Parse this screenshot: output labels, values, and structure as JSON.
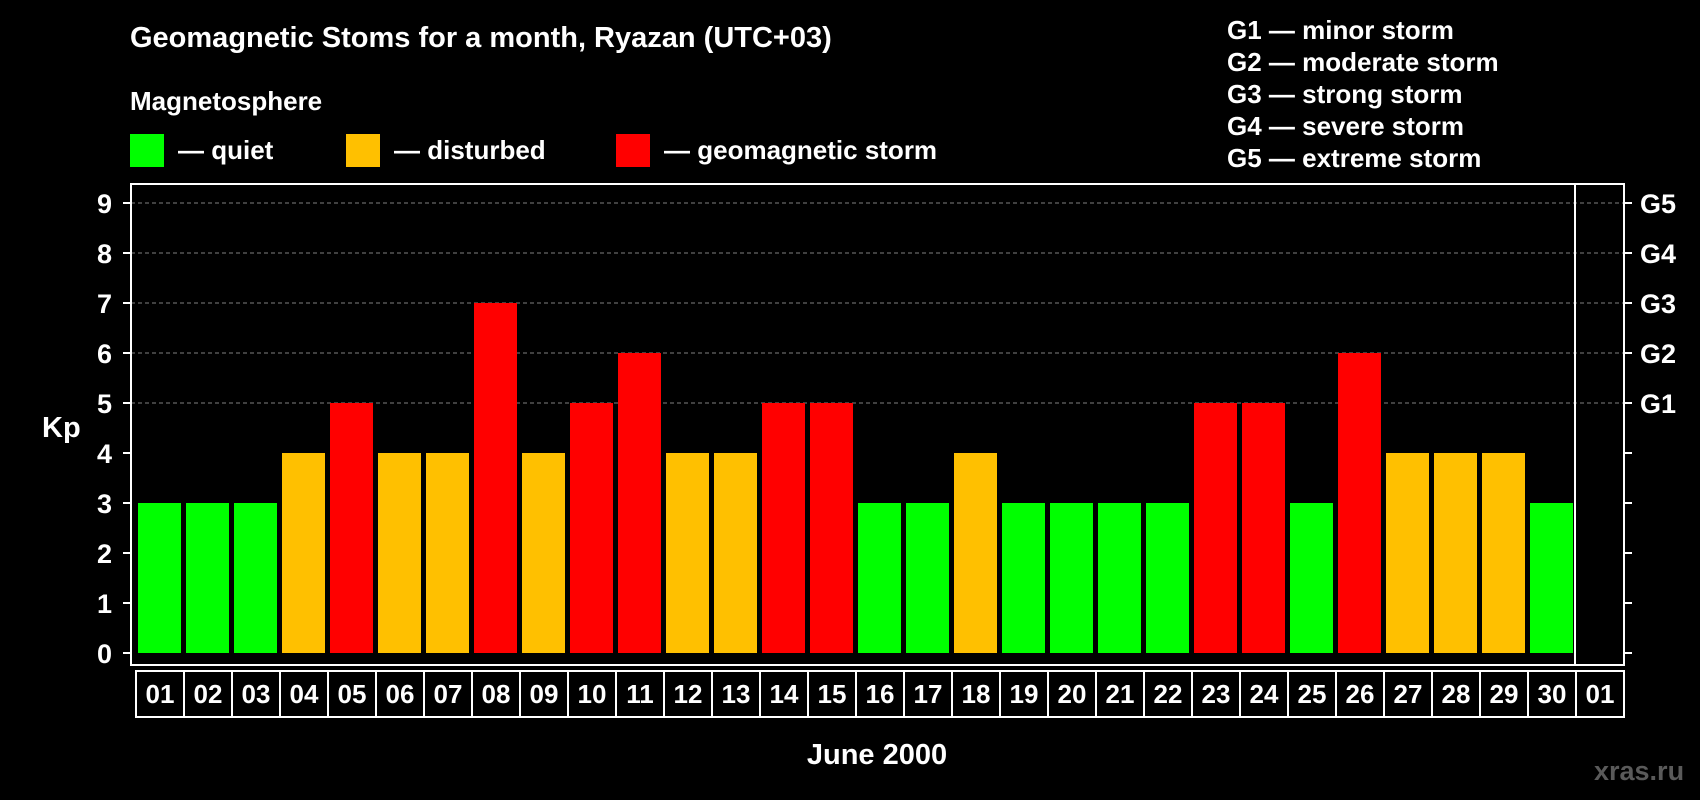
{
  "header": {
    "title": "Geomagnetic Stoms for a month, Ryazan (UTC+03)"
  },
  "legend": {
    "heading": "Magnetosphere",
    "items": [
      {
        "label": "— quiet",
        "color": "#00ff00"
      },
      {
        "label": "— disturbed",
        "color": "#ffc000"
      },
      {
        "label": "— geomagnetic storm",
        "color": "#ff0000"
      }
    ]
  },
  "g_scale": [
    "G1 — minor storm",
    "G2 — moderate storm",
    "G3 — strong storm",
    "G4 — severe storm",
    "G5 — extreme storm"
  ],
  "watermark": "xras.ru",
  "colors": {
    "quiet": "#00ff00",
    "disturbed": "#ffc000",
    "storm": "#ff0000",
    "background": "#000000",
    "axis": "#ffffff",
    "grid": "#808080"
  },
  "chart_data": {
    "type": "bar",
    "xlabel": "June 2000",
    "ylabel": "Kp",
    "ylim": [
      0,
      9
    ],
    "yticks": [
      0,
      1,
      2,
      3,
      4,
      5,
      6,
      7,
      8,
      9
    ],
    "grid": "dashed horizontal lines at Kp 5 to 9",
    "right_axis_labels": [
      {
        "kp": 5,
        "label": "G1"
      },
      {
        "kp": 6,
        "label": "G2"
      },
      {
        "kp": 7,
        "label": "G3"
      },
      {
        "kp": 8,
        "label": "G4"
      },
      {
        "kp": 9,
        "label": "G5"
      }
    ],
    "categories": [
      "01",
      "02",
      "03",
      "04",
      "05",
      "06",
      "07",
      "08",
      "09",
      "10",
      "11",
      "12",
      "13",
      "14",
      "15",
      "16",
      "17",
      "18",
      "19",
      "20",
      "21",
      "22",
      "23",
      "24",
      "25",
      "26",
      "27",
      "28",
      "29",
      "30",
      "01"
    ],
    "values": [
      3,
      3,
      3,
      4,
      5,
      4,
      4,
      7,
      4,
      5,
      6,
      4,
      4,
      5,
      5,
      3,
      3,
      4,
      3,
      3,
      3,
      3,
      5,
      5,
      3,
      6,
      4,
      4,
      4,
      3,
      null
    ],
    "categories_colored": [
      "quiet",
      "quiet",
      "quiet",
      "disturbed",
      "storm",
      "disturbed",
      "disturbed",
      "storm",
      "disturbed",
      "storm",
      "storm",
      "disturbed",
      "disturbed",
      "storm",
      "storm",
      "quiet",
      "quiet",
      "disturbed",
      "quiet",
      "quiet",
      "quiet",
      "quiet",
      "storm",
      "storm",
      "quiet",
      "storm",
      "disturbed",
      "disturbed",
      "disturbed",
      "quiet",
      null
    ]
  }
}
